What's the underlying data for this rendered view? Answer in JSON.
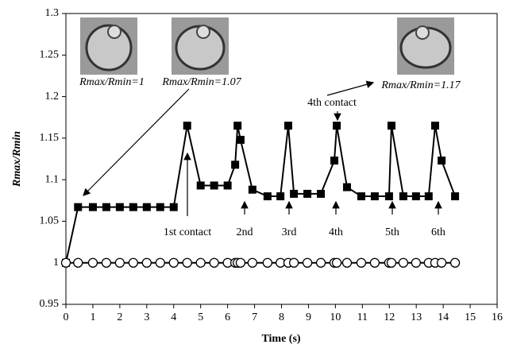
{
  "chart_data": {
    "type": "line",
    "x_label": "Time (s)",
    "y_label": "Rmax/Rmin",
    "x": [
      0,
      0.45,
      1,
      1.5,
      2,
      2.5,
      3,
      3.5,
      4,
      4.5,
      5,
      5.5,
      6,
      6.28,
      6.37,
      6.48,
      6.92,
      7.48,
      7.96,
      8.25,
      8.46,
      8.96,
      9.46,
      9.96,
      10.05,
      10.43,
      10.96,
      11.46,
      11.99,
      12.08,
      12.52,
      12.99,
      13.46,
      13.7,
      13.94,
      14.44
    ],
    "series": [
      {
        "marker": "square",
        "color": "#000000",
        "values": [
          1,
          1.067,
          1.067,
          1.067,
          1.067,
          1.067,
          1.067,
          1.067,
          1.067,
          1.165,
          1.093,
          1.093,
          1.093,
          1.118,
          1.165,
          1.148,
          1.088,
          1.08,
          1.08,
          1.165,
          1.083,
          1.083,
          1.083,
          1.123,
          1.165,
          1.091,
          1.08,
          1.08,
          1.08,
          1.165,
          1.08,
          1.08,
          1.08,
          1.165,
          1.123,
          1.08
        ]
      },
      {
        "marker": "circle",
        "color": "#000000",
        "values": [
          1,
          1,
          1,
          1,
          1,
          1,
          1,
          1,
          1,
          1,
          1,
          1,
          1,
          1,
          1,
          1,
          1,
          1,
          1,
          1,
          1,
          1,
          1,
          1,
          1,
          1,
          1,
          1,
          1,
          1,
          1,
          1,
          1,
          1,
          1,
          1
        ]
      }
    ],
    "xlim": [
      0,
      16
    ],
    "xticks": [
      0,
      1,
      2,
      3,
      4,
      5,
      6,
      7,
      8,
      9,
      10,
      11,
      12,
      13,
      14,
      15,
      16
    ],
    "ylim": [
      0.95,
      1.3
    ],
    "yticks": [
      0.95,
      1,
      1.05,
      1.1,
      1.15,
      1.2,
      1.25,
      1.3
    ],
    "annotations": [
      "Rmax/Rmin=1",
      "Rmax/Rmin=1.07",
      "Rmax/Rmin=1.17",
      "4th contact",
      "1st contact",
      "2nd",
      "3rd",
      "4th",
      "5th",
      "6th"
    ]
  }
}
